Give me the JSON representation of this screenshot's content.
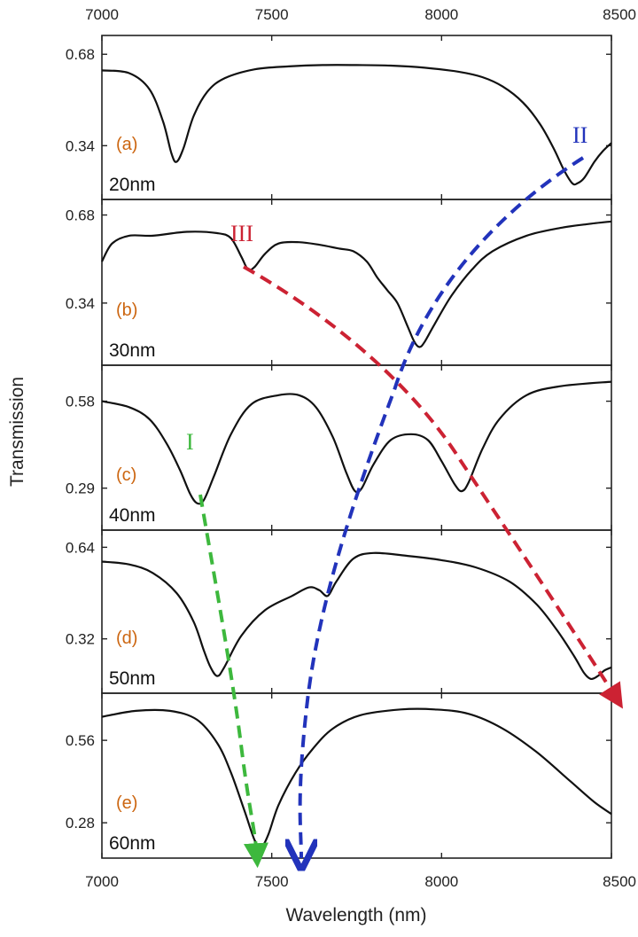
{
  "chart_data": {
    "type": "line",
    "xlabel": "Wavelength (nm)",
    "ylabel": "Transmission",
    "xlim": [
      7000,
      8500
    ],
    "x_ticks": [
      "7000",
      "7500",
      "8000",
      "8500"
    ],
    "x_tick_values": [
      7000,
      7500,
      8000,
      8500
    ],
    "grid": false,
    "panels": [
      {
        "letter": "(a)",
        "thickness": "20nm",
        "ylim": [
          0.14,
          0.75
        ],
        "yticks": [
          {
            "label": "0.68",
            "value": 0.68
          },
          {
            "label": "0.34",
            "value": 0.34
          }
        ],
        "series": [
          {
            "values": [
              [
                7000,
                0.62
              ],
              [
                7080,
                0.61
              ],
              [
                7140,
                0.55
              ],
              [
                7180,
                0.43
              ],
              [
                7205,
                0.31
              ],
              [
                7220,
                0.28
              ],
              [
                7240,
                0.33
              ],
              [
                7270,
                0.45
              ],
              [
                7310,
                0.54
              ],
              [
                7360,
                0.59
              ],
              [
                7450,
                0.624
              ],
              [
                7550,
                0.635
              ],
              [
                7650,
                0.64
              ],
              [
                7750,
                0.64
              ],
              [
                7850,
                0.638
              ],
              [
                7950,
                0.63
              ],
              [
                8050,
                0.615
              ],
              [
                8120,
                0.595
              ],
              [
                8180,
                0.56
              ],
              [
                8240,
                0.5
              ],
              [
                8290,
                0.42
              ],
              [
                8330,
                0.33
              ],
              [
                8360,
                0.25
              ],
              [
                8385,
                0.2
              ],
              [
                8400,
                0.2
              ],
              [
                8420,
                0.22
              ],
              [
                8450,
                0.28
              ],
              [
                8475,
                0.32
              ],
              [
                8500,
                0.35
              ]
            ]
          }
        ]
      },
      {
        "letter": "(b)",
        "thickness": "30nm",
        "ylim": [
          0.1,
          0.74
        ],
        "yticks": [
          {
            "label": "0.68",
            "value": 0.68
          },
          {
            "label": "0.34",
            "value": 0.34
          }
        ],
        "series": [
          {
            "values": [
              [
                7000,
                0.5
              ],
              [
                7030,
                0.57
              ],
              [
                7080,
                0.6
              ],
              [
                7150,
                0.6
              ],
              [
                7250,
                0.615
              ],
              [
                7340,
                0.61
              ],
              [
                7380,
                0.59
              ],
              [
                7410,
                0.52
              ],
              [
                7430,
                0.47
              ],
              [
                7450,
                0.48
              ],
              [
                7480,
                0.53
              ],
              [
                7520,
                0.57
              ],
              [
                7580,
                0.575
              ],
              [
                7640,
                0.565
              ],
              [
                7700,
                0.55
              ],
              [
                7740,
                0.54
              ],
              [
                7780,
                0.5
              ],
              [
                7810,
                0.44
              ],
              [
                7840,
                0.39
              ],
              [
                7870,
                0.34
              ],
              [
                7900,
                0.25
              ],
              [
                7920,
                0.19
              ],
              [
                7935,
                0.17
              ],
              [
                7950,
                0.19
              ],
              [
                7980,
                0.26
              ],
              [
                8030,
                0.37
              ],
              [
                8090,
                0.47
              ],
              [
                8150,
                0.54
              ],
              [
                8250,
                0.6
              ],
              [
                8350,
                0.63
              ],
              [
                8430,
                0.645
              ],
              [
                8500,
                0.655
              ]
            ]
          }
        ]
      },
      {
        "letter": "(c)",
        "thickness": "40nm",
        "ylim": [
          0.15,
          0.7
        ],
        "yticks": [
          {
            "label": "0.58",
            "value": 0.58
          },
          {
            "label": "0.29",
            "value": 0.29
          }
        ],
        "series": [
          {
            "values": [
              [
                7000,
                0.58
              ],
              [
                7080,
                0.56
              ],
              [
                7140,
                0.52
              ],
              [
                7190,
                0.44
              ],
              [
                7230,
                0.35
              ],
              [
                7260,
                0.27
              ],
              [
                7280,
                0.24
              ],
              [
                7300,
                0.25
              ],
              [
                7330,
                0.33
              ],
              [
                7380,
                0.47
              ],
              [
                7440,
                0.57
              ],
              [
                7520,
                0.6
              ],
              [
                7580,
                0.6
              ],
              [
                7630,
                0.56
              ],
              [
                7680,
                0.46
              ],
              [
                7720,
                0.34
              ],
              [
                7745,
                0.28
              ],
              [
                7765,
                0.29
              ],
              [
                7800,
                0.37
              ],
              [
                7850,
                0.45
              ],
              [
                7910,
                0.47
              ],
              [
                7960,
                0.45
              ],
              [
                8000,
                0.38
              ],
              [
                8040,
                0.3
              ],
              [
                8060,
                0.28
              ],
              [
                8080,
                0.31
              ],
              [
                8120,
                0.42
              ],
              [
                8170,
                0.52
              ],
              [
                8250,
                0.6
              ],
              [
                8350,
                0.63
              ],
              [
                8500,
                0.645
              ]
            ]
          }
        ]
      },
      {
        "letter": "(d)",
        "thickness": "50nm",
        "ylim": [
          0.13,
          0.7
        ],
        "yticks": [
          {
            "label": "0.64",
            "value": 0.64
          },
          {
            "label": "0.32",
            "value": 0.32
          }
        ],
        "series": [
          {
            "values": [
              [
                7000,
                0.59
              ],
              [
                7080,
                0.58
              ],
              [
                7150,
                0.55
              ],
              [
                7220,
                0.48
              ],
              [
                7270,
                0.38
              ],
              [
                7300,
                0.28
              ],
              [
                7320,
                0.22
              ],
              [
                7340,
                0.19
              ],
              [
                7360,
                0.22
              ],
              [
                7410,
                0.33
              ],
              [
                7480,
                0.42
              ],
              [
                7560,
                0.47
              ],
              [
                7610,
                0.5
              ],
              [
                7640,
                0.49
              ],
              [
                7665,
                0.47
              ],
              [
                7690,
                0.52
              ],
              [
                7740,
                0.6
              ],
              [
                7800,
                0.62
              ],
              [
                7900,
                0.61
              ],
              [
                8000,
                0.595
              ],
              [
                8100,
                0.57
              ],
              [
                8200,
                0.52
              ],
              [
                8280,
                0.44
              ],
              [
                8340,
                0.35
              ],
              [
                8390,
                0.26
              ],
              [
                8420,
                0.2
              ],
              [
                8440,
                0.18
              ],
              [
                8460,
                0.19
              ],
              [
                8480,
                0.21
              ],
              [
                8500,
                0.22
              ]
            ]
          }
        ]
      },
      {
        "letter": "(e)",
        "thickness": "60nm",
        "ylim": [
          0.16,
          0.72
        ],
        "yticks": [
          {
            "label": "0.56",
            "value": 0.56
          },
          {
            "label": "0.28",
            "value": 0.28
          }
        ],
        "series": [
          {
            "values": [
              [
                7000,
                0.64
              ],
              [
                7100,
                0.66
              ],
              [
                7200,
                0.66
              ],
              [
                7280,
                0.63
              ],
              [
                7340,
                0.55
              ],
              [
                7380,
                0.45
              ],
              [
                7420,
                0.32
              ],
              [
                7450,
                0.22
              ],
              [
                7470,
                0.2
              ],
              [
                7490,
                0.24
              ],
              [
                7520,
                0.34
              ],
              [
                7570,
                0.45
              ],
              [
                7620,
                0.53
              ],
              [
                7680,
                0.6
              ],
              [
                7760,
                0.645
              ],
              [
                7880,
                0.665
              ],
              [
                7980,
                0.665
              ],
              [
                8080,
                0.65
              ],
              [
                8180,
                0.6
              ],
              [
                8280,
                0.52
              ],
              [
                8380,
                0.42
              ],
              [
                8450,
                0.35
              ],
              [
                8500,
                0.31
              ]
            ]
          }
        ]
      }
    ],
    "guides": [
      {
        "label": "I",
        "color": "#3db83d"
      },
      {
        "label": "II",
        "color": "#2233bb"
      },
      {
        "label": "III",
        "color": "#cc2233"
      }
    ]
  },
  "colors": {
    "curve": "#111111",
    "panel_letter": "#cc6611"
  }
}
